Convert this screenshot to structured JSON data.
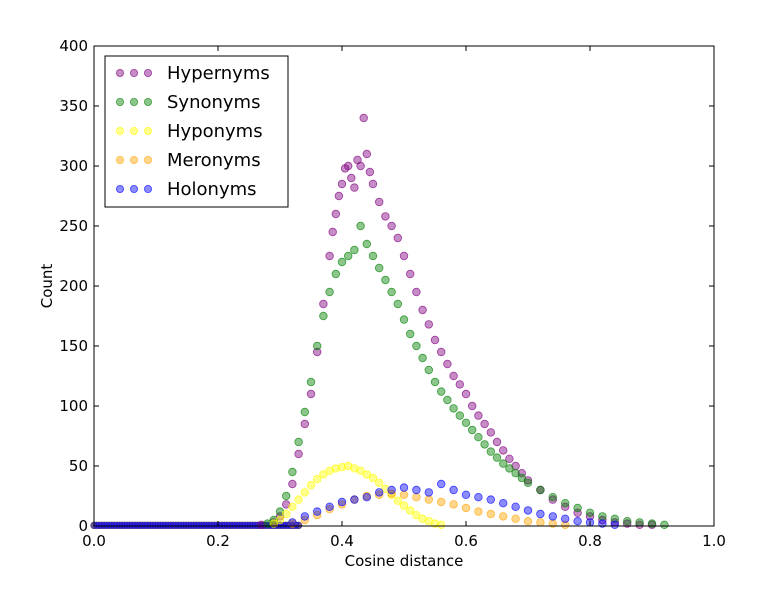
{
  "chart_data": {
    "type": "scatter",
    "xlabel": "Cosine distance",
    "ylabel": "Count",
    "xlim": [
      0.0,
      1.0
    ],
    "ylim": [
      0,
      400
    ],
    "x_ticks": [
      "0.0",
      "0.2",
      "0.4",
      "0.6",
      "0.8",
      "1.0"
    ],
    "y_ticks": [
      "0",
      "50",
      "100",
      "150",
      "200",
      "250",
      "300",
      "350",
      "400"
    ],
    "legend_position": "top-left",
    "grid": false,
    "series": [
      {
        "name": "Hypernyms",
        "color": "#800080",
        "points": [
          [
            0.27,
            1
          ],
          [
            0.29,
            3
          ],
          [
            0.3,
            8
          ],
          [
            0.31,
            18
          ],
          [
            0.32,
            35
          ],
          [
            0.33,
            60
          ],
          [
            0.34,
            85
          ],
          [
            0.35,
            110
          ],
          [
            0.36,
            145
          ],
          [
            0.37,
            185
          ],
          [
            0.38,
            225
          ],
          [
            0.385,
            245
          ],
          [
            0.39,
            260
          ],
          [
            0.395,
            275
          ],
          [
            0.4,
            285
          ],
          [
            0.405,
            298
          ],
          [
            0.41,
            300
          ],
          [
            0.415,
            290
          ],
          [
            0.42,
            282
          ],
          [
            0.425,
            305
          ],
          [
            0.43,
            300
          ],
          [
            0.435,
            340
          ],
          [
            0.44,
            310
          ],
          [
            0.445,
            295
          ],
          [
            0.45,
            285
          ],
          [
            0.46,
            270
          ],
          [
            0.47,
            258
          ],
          [
            0.48,
            250
          ],
          [
            0.49,
            240
          ],
          [
            0.5,
            225
          ],
          [
            0.51,
            210
          ],
          [
            0.52,
            195
          ],
          [
            0.53,
            180
          ],
          [
            0.54,
            168
          ],
          [
            0.55,
            155
          ],
          [
            0.56,
            145
          ],
          [
            0.57,
            135
          ],
          [
            0.58,
            125
          ],
          [
            0.59,
            118
          ],
          [
            0.6,
            110
          ],
          [
            0.61,
            100
          ],
          [
            0.62,
            92
          ],
          [
            0.63,
            85
          ],
          [
            0.64,
            78
          ],
          [
            0.65,
            70
          ],
          [
            0.66,
            63
          ],
          [
            0.67,
            56
          ],
          [
            0.68,
            50
          ],
          [
            0.69,
            44
          ],
          [
            0.7,
            38
          ],
          [
            0.72,
            30
          ],
          [
            0.74,
            22
          ],
          [
            0.76,
            16
          ],
          [
            0.78,
            11
          ],
          [
            0.8,
            8
          ],
          [
            0.82,
            5
          ],
          [
            0.84,
            3
          ],
          [
            0.86,
            2
          ],
          [
            0.88,
            1
          ],
          [
            0.9,
            1
          ]
        ]
      },
      {
        "name": "Synonyms",
        "color": "#008000",
        "points": [
          [
            0.28,
            2
          ],
          [
            0.29,
            5
          ],
          [
            0.3,
            12
          ],
          [
            0.31,
            25
          ],
          [
            0.32,
            45
          ],
          [
            0.33,
            70
          ],
          [
            0.34,
            95
          ],
          [
            0.35,
            120
          ],
          [
            0.36,
            150
          ],
          [
            0.37,
            175
          ],
          [
            0.38,
            195
          ],
          [
            0.39,
            210
          ],
          [
            0.4,
            220
          ],
          [
            0.41,
            225
          ],
          [
            0.42,
            230
          ],
          [
            0.43,
            250
          ],
          [
            0.44,
            235
          ],
          [
            0.45,
            225
          ],
          [
            0.46,
            215
          ],
          [
            0.47,
            205
          ],
          [
            0.48,
            195
          ],
          [
            0.49,
            185
          ],
          [
            0.5,
            172
          ],
          [
            0.51,
            160
          ],
          [
            0.52,
            150
          ],
          [
            0.53,
            140
          ],
          [
            0.54,
            130
          ],
          [
            0.55,
            120
          ],
          [
            0.56,
            112
          ],
          [
            0.57,
            105
          ],
          [
            0.58,
            98
          ],
          [
            0.59,
            92
          ],
          [
            0.6,
            86
          ],
          [
            0.61,
            80
          ],
          [
            0.62,
            74
          ],
          [
            0.63,
            68
          ],
          [
            0.64,
            62
          ],
          [
            0.65,
            57
          ],
          [
            0.66,
            52
          ],
          [
            0.67,
            48
          ],
          [
            0.68,
            44
          ],
          [
            0.69,
            40
          ],
          [
            0.7,
            36
          ],
          [
            0.72,
            30
          ],
          [
            0.74,
            24
          ],
          [
            0.76,
            19
          ],
          [
            0.78,
            15
          ],
          [
            0.8,
            11
          ],
          [
            0.82,
            8
          ],
          [
            0.84,
            6
          ],
          [
            0.86,
            4
          ],
          [
            0.88,
            3
          ],
          [
            0.9,
            2
          ],
          [
            0.92,
            1
          ]
        ]
      },
      {
        "name": "Hyponyms",
        "color": "#ffff00",
        "points": [
          [
            0.29,
            2
          ],
          [
            0.3,
            5
          ],
          [
            0.31,
            10
          ],
          [
            0.32,
            16
          ],
          [
            0.33,
            22
          ],
          [
            0.34,
            28
          ],
          [
            0.35,
            34
          ],
          [
            0.36,
            39
          ],
          [
            0.37,
            43
          ],
          [
            0.38,
            46
          ],
          [
            0.39,
            48
          ],
          [
            0.4,
            49
          ],
          [
            0.41,
            50
          ],
          [
            0.42,
            48
          ],
          [
            0.43,
            46
          ],
          [
            0.44,
            43
          ],
          [
            0.45,
            40
          ],
          [
            0.46,
            36
          ],
          [
            0.47,
            31
          ],
          [
            0.48,
            26
          ],
          [
            0.49,
            21
          ],
          [
            0.5,
            17
          ],
          [
            0.51,
            13
          ],
          [
            0.52,
            9
          ],
          [
            0.53,
            6
          ],
          [
            0.54,
            4
          ],
          [
            0.55,
            2
          ],
          [
            0.56,
            1
          ]
        ]
      },
      {
        "name": "Meronyms",
        "color": "#ffa500",
        "points": [
          [
            0.32,
            2
          ],
          [
            0.34,
            5
          ],
          [
            0.36,
            9
          ],
          [
            0.38,
            14
          ],
          [
            0.4,
            18
          ],
          [
            0.42,
            22
          ],
          [
            0.44,
            25
          ],
          [
            0.46,
            26
          ],
          [
            0.48,
            27
          ],
          [
            0.5,
            26
          ],
          [
            0.52,
            24
          ],
          [
            0.54,
            22
          ],
          [
            0.56,
            20
          ],
          [
            0.58,
            18
          ],
          [
            0.6,
            15
          ],
          [
            0.62,
            12
          ],
          [
            0.64,
            10
          ],
          [
            0.66,
            8
          ],
          [
            0.68,
            6
          ],
          [
            0.7,
            4
          ],
          [
            0.72,
            3
          ],
          [
            0.74,
            2
          ],
          [
            0.76,
            1
          ]
        ]
      },
      {
        "name": "Holonyms",
        "color": "#0000ff",
        "points": [
          [
            0.32,
            3
          ],
          [
            0.34,
            8
          ],
          [
            0.36,
            12
          ],
          [
            0.38,
            16
          ],
          [
            0.4,
            20
          ],
          [
            0.42,
            22
          ],
          [
            0.44,
            24
          ],
          [
            0.46,
            28
          ],
          [
            0.48,
            30
          ],
          [
            0.5,
            32
          ],
          [
            0.52,
            30
          ],
          [
            0.54,
            28
          ],
          [
            0.56,
            35
          ],
          [
            0.58,
            30
          ],
          [
            0.6,
            26
          ],
          [
            0.62,
            24
          ],
          [
            0.64,
            22
          ],
          [
            0.66,
            19
          ],
          [
            0.68,
            16
          ],
          [
            0.7,
            13
          ],
          [
            0.72,
            10
          ],
          [
            0.74,
            8
          ],
          [
            0.76,
            6
          ],
          [
            0.78,
            4
          ],
          [
            0.8,
            3
          ],
          [
            0.82,
            2
          ],
          [
            0.84,
            1
          ]
        ]
      }
    ]
  }
}
